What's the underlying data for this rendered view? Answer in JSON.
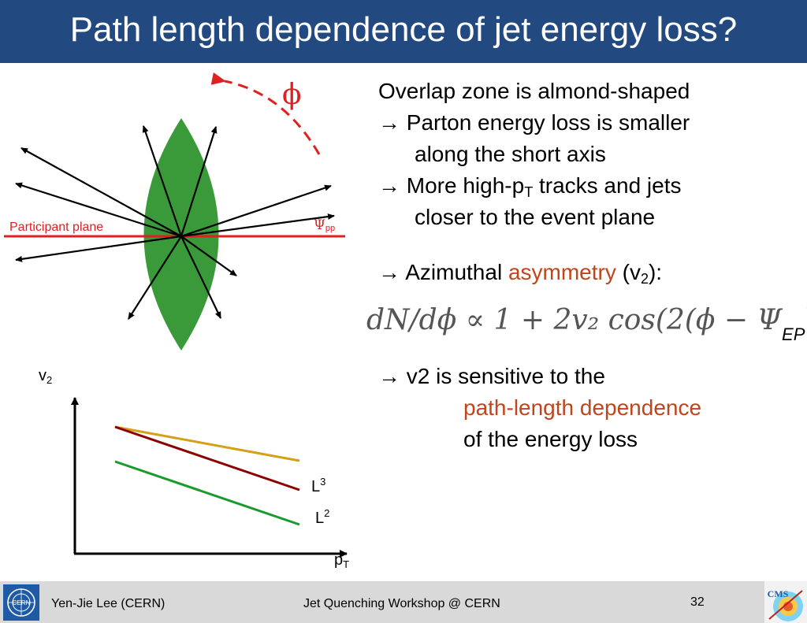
{
  "slide": {
    "title": "Path length dependence of jet energy loss?",
    "phi_symbol": "ϕ",
    "participant_plane_label": "Participant plane",
    "psi_label": "Ψ",
    "psi_sub": "pp",
    "bullets": {
      "b1": "Overlap zone is almond-shaped",
      "b2": "→ Parton energy loss is smaller",
      "b2_cont": "along the short axis",
      "b3_pre": "→ More high-p",
      "b3_sub": "T",
      "b3_post": " tracks and jets",
      "b3_cont": "closer to the event plane",
      "b4_pre": "→ Azimuthal ",
      "b4_red": "asymmetry",
      "b4_mid": " (v",
      "b4_sub": "2",
      "b4_post": "):",
      "b5": "→ v2 is sensitive to the",
      "b5_red": "path-length dependence",
      "b5_cont": "of the energy loss"
    },
    "formula": {
      "main": "dN/dϕ  ∝  1 + 2v₂ cos(2(ϕ − Ψ",
      "sub": "EP",
      "close": "))"
    },
    "plot": {
      "ylabel": "v",
      "ylabel_sub": "2",
      "xlabel": "p",
      "xlabel_sub": "T",
      "l3_label": "L",
      "l3_sup": "3",
      "l2_label": "L",
      "l2_sup": "2",
      "colors": {
        "yellow": "#d4a017",
        "darkred": "#8b0000",
        "green": "#1a9a2a"
      }
    }
  },
  "footer": {
    "author": "Yen-Jie Lee (CERN)",
    "event": "Jet Quenching Workshop @ CERN",
    "page": "32",
    "cern_logo_text": "CERN",
    "cms_logo_text": "CMS"
  },
  "colors": {
    "title_bar": "#234a80",
    "almond": "#3a9a3a",
    "red": "#e02020",
    "accent_red": "#c0441c"
  }
}
